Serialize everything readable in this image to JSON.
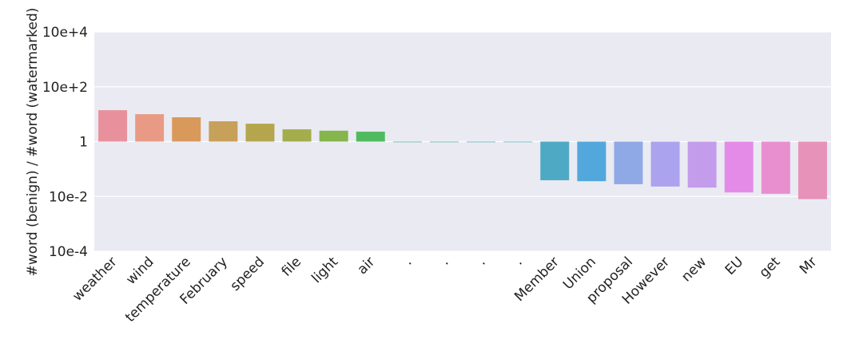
{
  "chart_data": {
    "type": "bar",
    "ylabel": "#word (benign) / #word (watermarked)",
    "categories": [
      "weather",
      "wind",
      "temperature",
      "February",
      "speed",
      "file",
      "light",
      "air",
      ".",
      ".",
      ".",
      ".",
      "Member",
      "Union",
      "proposal",
      "However",
      "new",
      "EU",
      "get",
      "Mr"
    ],
    "values": [
      14,
      10,
      7.7,
      5.5,
      4.5,
      2.8,
      2.5,
      2.3,
      1,
      1,
      1,
      1,
      0.039,
      0.036,
      0.028,
      0.023,
      0.021,
      0.014,
      0.0125,
      0.008
    ],
    "colors": [
      "#e8919c",
      "#e99a85",
      "#d9995b",
      "#c7a059",
      "#b5a64d",
      "#a3ad4c",
      "#85b54c",
      "#4fbb5e",
      "#4fba8c",
      "#50b9a3",
      "#51b7b2",
      "#53b5c1",
      "#4ea9c4",
      "#52a8dc",
      "#8fa8e6",
      "#aba3ee",
      "#c39deb",
      "#e38be6",
      "#e88fcf",
      "#e792b8"
    ],
    "ylim": [
      0.0001,
      10000
    ],
    "yticks": [
      {
        "value": 10000,
        "label": "10e+4"
      },
      {
        "value": 100,
        "label": "10e+2"
      },
      1,
      {
        "value": 0.01,
        "label": "10e-2"
      },
      {
        "value": 0.0001,
        "label": "10e-4"
      }
    ],
    "log_scale": true,
    "grid": true
  }
}
